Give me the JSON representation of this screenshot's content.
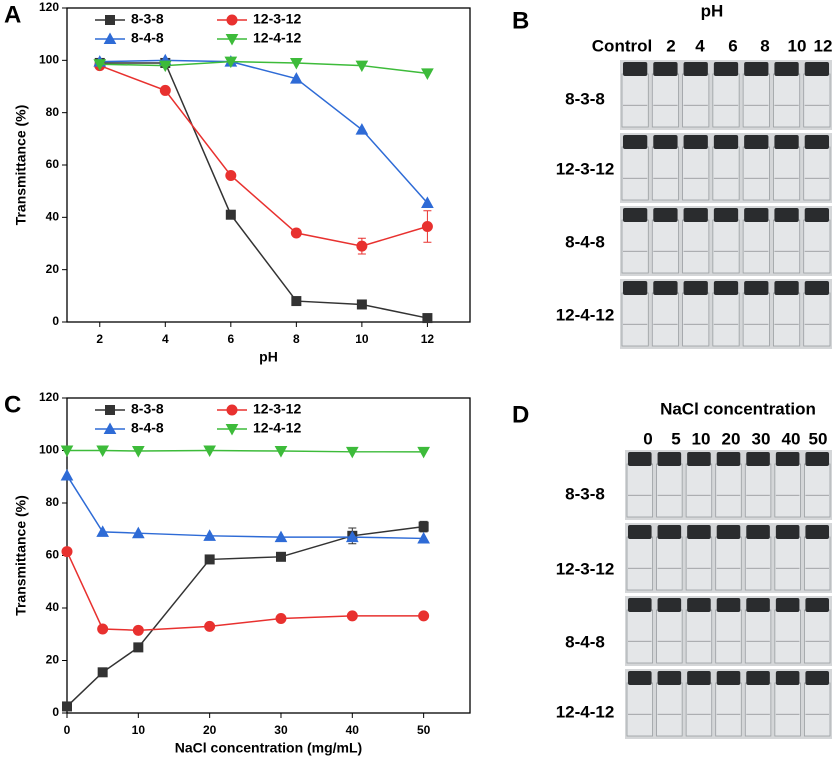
{
  "chart_data": [
    {
      "type": "line",
      "panel_label": "A",
      "x_label": "pH",
      "y_label": "Transmittance (%)",
      "x": [
        2,
        4,
        6,
        8,
        10,
        12
      ],
      "xlim": [
        1,
        13.3
      ],
      "xticks": [
        2,
        4,
        6,
        8,
        10,
        12
      ],
      "ylim": [
        0,
        120
      ],
      "yticks": [
        0,
        20,
        40,
        60,
        80,
        100,
        120
      ],
      "series": [
        {
          "name": "8-3-8",
          "color": "#333333",
          "marker": "square",
          "values": [
            99,
            99,
            41,
            8,
            6.7,
            1.5
          ]
        },
        {
          "name": "12-3-12",
          "color": "#e8312f",
          "marker": "circle",
          "values": [
            98,
            88.5,
            56,
            34,
            29,
            36.5
          ],
          "errors": [
            null,
            null,
            null,
            null,
            3,
            6
          ]
        },
        {
          "name": "8-4-8",
          "color": "#2e6bd6",
          "marker": "triangle-up",
          "values": [
            99.5,
            100,
            99.5,
            93,
            73.5,
            45.5
          ]
        },
        {
          "name": "12-4-12",
          "color": "#3dbb3a",
          "marker": "triangle-down",
          "values": [
            98.5,
            98,
            99.5,
            99,
            98,
            95
          ]
        }
      ]
    },
    {
      "type": "line",
      "panel_label": "C",
      "x_label": "NaCl concentration (mg/mL)",
      "y_label": "Transmittance (%)",
      "x": [
        0,
        5,
        10,
        20,
        30,
        40,
        50
      ],
      "xlim": [
        0,
        56.5
      ],
      "xticks": [
        0,
        10,
        20,
        30,
        40,
        50
      ],
      "ylim": [
        0,
        120
      ],
      "yticks": [
        0,
        20,
        40,
        60,
        80,
        100,
        120
      ],
      "series": [
        {
          "name": "8-3-8",
          "color": "#333333",
          "marker": "square",
          "values": [
            2.5,
            15.5,
            25,
            58.5,
            59.5,
            67.5,
            71
          ],
          "errors": [
            null,
            null,
            null,
            null,
            null,
            3,
            2
          ]
        },
        {
          "name": "12-3-12",
          "color": "#e8312f",
          "marker": "circle",
          "values": [
            61.5,
            32,
            31.5,
            33,
            36,
            37,
            37
          ]
        },
        {
          "name": "8-4-8",
          "color": "#2e6bd6",
          "marker": "triangle-up",
          "values": [
            90.5,
            69,
            68.5,
            67.5,
            67,
            67,
            66.5
          ]
        },
        {
          "name": "12-4-12",
          "color": "#3dbb3a",
          "marker": "triangle-down",
          "values": [
            100,
            100,
            99.8,
            100,
            99.8,
            99.5,
            99.5
          ]
        }
      ]
    }
  ],
  "photo_panels": [
    {
      "label": "B",
      "title": "pH",
      "columns": [
        "Control",
        "2",
        "4",
        "6",
        "8",
        "10",
        "12"
      ],
      "rows": [
        "8-3-8",
        "12-3-12",
        "8-4-8",
        "12-4-12"
      ]
    },
    {
      "label": "D",
      "title": "NaCl concentration",
      "columns": [
        "0",
        "5",
        "10",
        "20",
        "30",
        "40",
        "50"
      ],
      "rows": [
        "8-3-8",
        "12-3-12",
        "8-4-8",
        "12-4-12"
      ]
    }
  ]
}
